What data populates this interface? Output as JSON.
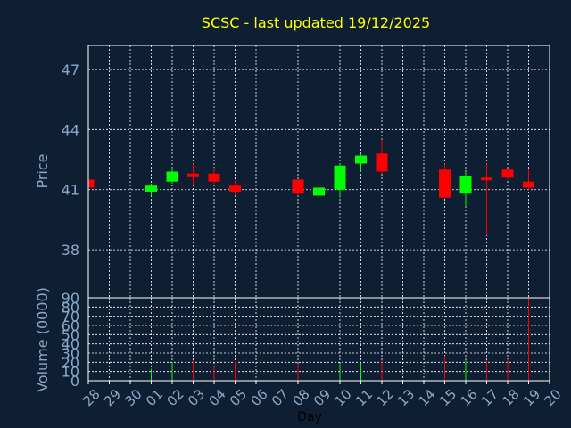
{
  "chart_data": {
    "type": "candlestick",
    "title": "SCSC - last updated 19/12/2025",
    "xlabel": "Day",
    "ylabel_price": "Price",
    "ylabel_volume": "Volume (0000)",
    "categories": [
      "28",
      "29",
      "30",
      "01",
      "02",
      "03",
      "04",
      "05",
      "06",
      "07",
      "08",
      "09",
      "10",
      "11",
      "12",
      "13",
      "14",
      "15",
      "16",
      "17",
      "18",
      "19",
      "20"
    ],
    "price_ylim": [
      35.6,
      48.2
    ],
    "price_ticks": [
      38,
      41,
      44,
      47
    ],
    "volume_ylim": [
      0,
      90
    ],
    "volume_ticks": [
      0,
      10,
      20,
      30,
      40,
      50,
      60,
      70,
      80,
      90
    ],
    "candles": [
      {
        "day": "28",
        "open": 41.5,
        "high": 41.5,
        "low": 41.1,
        "close": 41.1
      },
      {
        "day": "01",
        "open": 40.9,
        "high": 41.3,
        "low": 40.7,
        "close": 41.2
      },
      {
        "day": "02",
        "open": 41.4,
        "high": 42.1,
        "low": 41.3,
        "close": 41.9
      },
      {
        "day": "03",
        "open": 41.8,
        "high": 42.3,
        "low": 41.2,
        "close": 41.7
      },
      {
        "day": "04",
        "open": 41.8,
        "high": 42.1,
        "low": 41.3,
        "close": 41.4
      },
      {
        "day": "05",
        "open": 41.2,
        "high": 41.5,
        "low": 40.7,
        "close": 40.9
      },
      {
        "day": "08",
        "open": 41.5,
        "high": 41.5,
        "low": 40.7,
        "close": 40.8
      },
      {
        "day": "09",
        "open": 40.7,
        "high": 41.3,
        "low": 40.1,
        "close": 41.1
      },
      {
        "day": "10",
        "open": 41.0,
        "high": 42.3,
        "low": 40.6,
        "close": 42.2
      },
      {
        "day": "11",
        "open": 42.3,
        "high": 42.8,
        "low": 41.9,
        "close": 42.7
      },
      {
        "day": "12",
        "open": 42.8,
        "high": 43.5,
        "low": 41.8,
        "close": 41.9
      },
      {
        "day": "15",
        "open": 42.0,
        "high": 42.3,
        "low": 40.6,
        "close": 40.6
      },
      {
        "day": "16",
        "open": 40.8,
        "high": 41.9,
        "low": 40.2,
        "close": 41.7
      },
      {
        "day": "17",
        "open": 41.6,
        "high": 42.3,
        "low": 38.8,
        "close": 41.5
      },
      {
        "day": "18",
        "open": 42.0,
        "high": 42.0,
        "low": 41.5,
        "close": 41.6
      },
      {
        "day": "19",
        "open": 41.4,
        "high": 42.0,
        "low": 41.0,
        "close": 41.1
      }
    ],
    "volumes": [
      {
        "day": "01",
        "value": 13,
        "dir": "up"
      },
      {
        "day": "02",
        "value": 20,
        "dir": "up"
      },
      {
        "day": "03",
        "value": 22,
        "dir": "down"
      },
      {
        "day": "04",
        "value": 15,
        "dir": "down"
      },
      {
        "day": "05",
        "value": 21,
        "dir": "down"
      },
      {
        "day": "08",
        "value": 18,
        "dir": "down"
      },
      {
        "day": "09",
        "value": 14,
        "dir": "up"
      },
      {
        "day": "10",
        "value": 18,
        "dir": "up"
      },
      {
        "day": "11",
        "value": 19,
        "dir": "up"
      },
      {
        "day": "12",
        "value": 22,
        "dir": "down"
      },
      {
        "day": "15",
        "value": 27,
        "dir": "down"
      },
      {
        "day": "16",
        "value": 22,
        "dir": "up"
      },
      {
        "day": "17",
        "value": 22,
        "dir": "down"
      },
      {
        "day": "18",
        "value": 23,
        "dir": "down"
      },
      {
        "day": "19",
        "value": 92,
        "dir": "down"
      }
    ],
    "colors": {
      "background": "#0f1f33",
      "plot_border": "#ffffff",
      "grid": "#ffffff",
      "up": "#00ff00",
      "down": "#ff0000",
      "title": "#ffff00",
      "axis_label": "#8aa8c8",
      "day_label": "#000000"
    },
    "grid": true
  }
}
